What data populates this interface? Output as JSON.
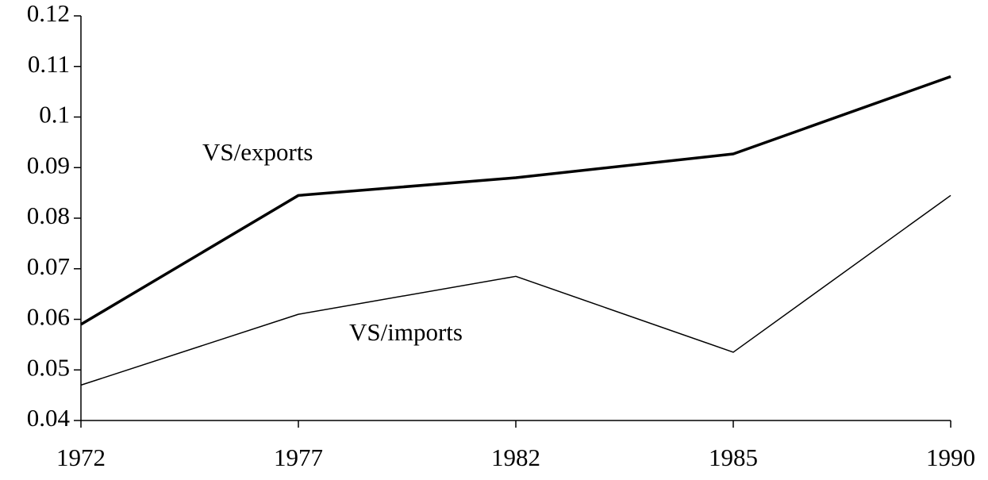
{
  "chart_data": {
    "type": "line",
    "categories": [
      "1972",
      "1977",
      "1982",
      "1985",
      "1990"
    ],
    "series": [
      {
        "name": "VS/exports",
        "color": "#000000",
        "values": [
          0.059,
          0.0845,
          0.088,
          0.0927,
          0.108
        ]
      },
      {
        "name": "VS/imports",
        "color": "#000000",
        "values": [
          0.047,
          0.061,
          0.0685,
          0.0535,
          0.0845
        ]
      }
    ],
    "ylim": [
      0.04,
      0.12
    ],
    "yticks": [
      0.04,
      0.05,
      0.06,
      0.07,
      0.08,
      0.09,
      0.1,
      0.11,
      0.12
    ],
    "grid": false
  }
}
